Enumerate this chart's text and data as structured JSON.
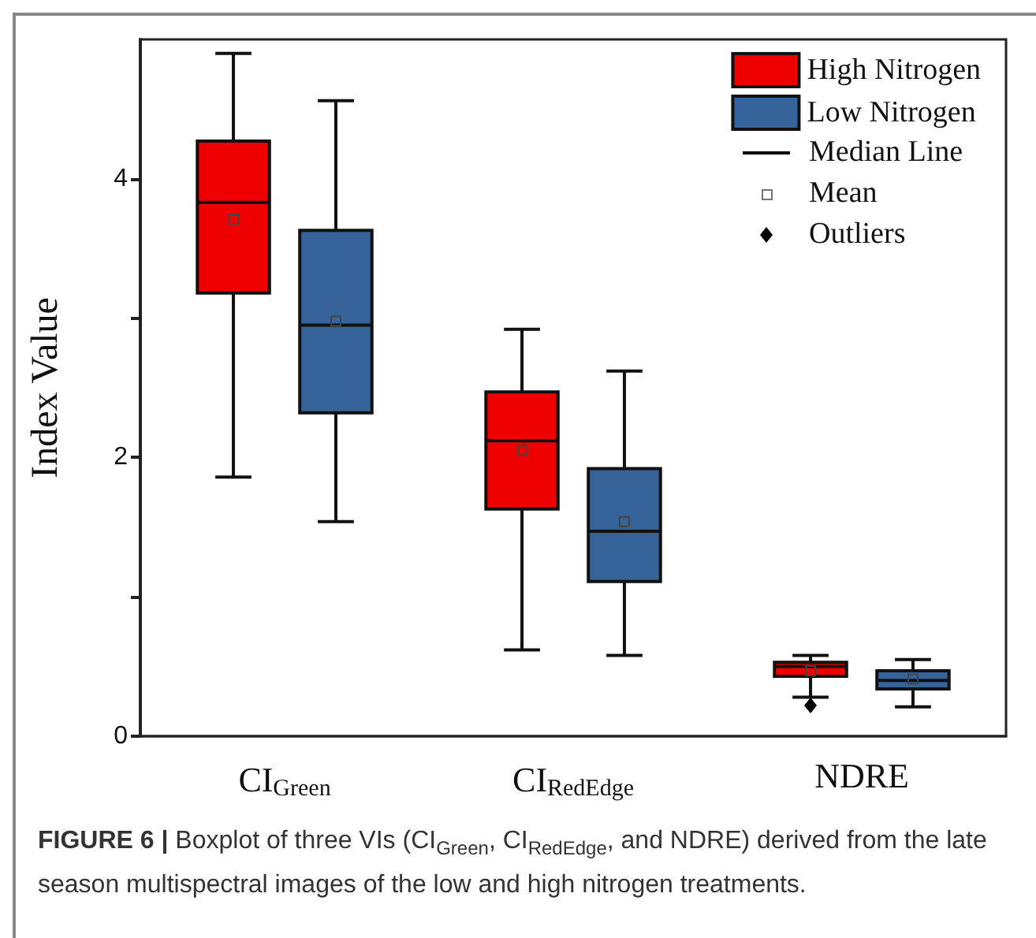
{
  "chart_data": {
    "type": "box",
    "ylabel": "Index Value",
    "categories": [
      "CI$_{Green}$",
      "CI$_{RedEdge}$",
      "NDRE"
    ],
    "ylim": [
      0,
      5
    ],
    "yticks": [
      0,
      {
        "value": 1,
        "label": null
      },
      2,
      {
        "value": 3,
        "label": null
      },
      4
    ],
    "legend": "top right",
    "grid": false,
    "series": [
      {
        "name": "High Nitrogen",
        "color": "#ee0000",
        "boxes": [
          {
            "low": 1.86,
            "q1": 3.18,
            "median": 3.83,
            "q3": 4.27,
            "high": 4.9,
            "mean": 3.71
          },
          {
            "low": 0.62,
            "q1": 1.63,
            "median": 2.12,
            "q3": 2.47,
            "high": 2.92,
            "mean": 2.05
          },
          {
            "low": 0.28,
            "q1": 0.43,
            "median": 0.5,
            "q3": 0.53,
            "high": 0.58,
            "mean": 0.47,
            "outliers": [
              0.22
            ]
          }
        ]
      },
      {
        "name": "Low Nitrogen",
        "color": "#35649a",
        "boxes": [
          {
            "low": 1.54,
            "q1": 2.32,
            "median": 2.95,
            "q3": 3.63,
            "high": 4.56,
            "mean": 2.98
          },
          {
            "low": 0.58,
            "q1": 1.11,
            "median": 1.47,
            "q3": 1.92,
            "high": 2.62,
            "mean": 1.54
          },
          {
            "low": 0.21,
            "q1": 0.34,
            "median": 0.4,
            "q3": 0.47,
            "high": 0.55,
            "mean": 0.41
          }
        ]
      }
    ],
    "annotations": [
      "Median Line",
      "Mean",
      "Outliers",
      "FIGURE 6 | Boxplot of three VIs (CI$_{Green}$, CI$_{RedEdge}$, and NDRE) derived from the late season multispectral images of the low and high nitrogen treatments."
    ]
  }
}
